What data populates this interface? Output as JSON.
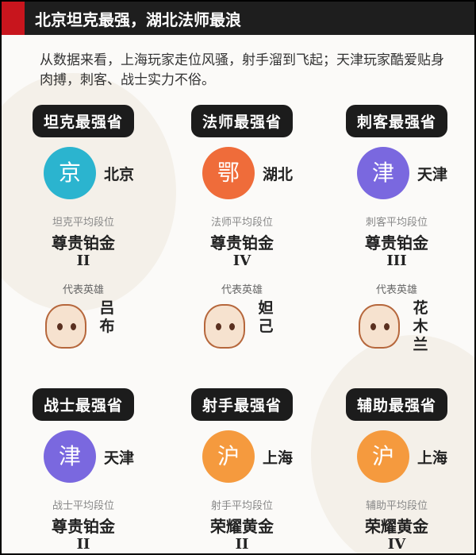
{
  "header": {
    "title": "北京坦克最强，湖北法师最浪"
  },
  "intro": "从数据来看，上海玩家走位风骚，射手溜到飞起；天津玩家酷爱贴身肉搏，刺客、战士实力不俗。",
  "colors": {
    "header_bg": "#1e1e1e",
    "accent_red": "#c8151d",
    "beijing": "#2bb4cf",
    "hubei": "#ef6c3a",
    "tianjin": "#7a68df",
    "shanghai": "#f59a3e"
  },
  "cards": [
    {
      "title": "坦克最强省",
      "badge": "京",
      "province": "北京",
      "rank_label": "坦克平均段位",
      "rank": "尊贵铂金",
      "tier": "II",
      "hero_label": "代表英雄",
      "hero": "吕布",
      "color": "#2bb4cf"
    },
    {
      "title": "法师最强省",
      "badge": "鄂",
      "province": "湖北",
      "rank_label": "法师平均段位",
      "rank": "尊贵铂金",
      "tier": "IV",
      "hero_label": "代表英雄",
      "hero": "妲己",
      "color": "#ef6c3a"
    },
    {
      "title": "刺客最强省",
      "badge": "津",
      "province": "天津",
      "rank_label": "刺客平均段位",
      "rank": "尊贵铂金",
      "tier": "III",
      "hero_label": "代表英雄",
      "hero": "花木兰",
      "color": "#7a68df"
    },
    {
      "title": "战士最强省",
      "badge": "津",
      "province": "天津",
      "rank_label": "战士平均段位",
      "rank": "尊贵铂金",
      "tier": "II",
      "color": "#7a68df"
    },
    {
      "title": "射手最强省",
      "badge": "沪",
      "province": "上海",
      "rank_label": "射手平均段位",
      "rank": "荣耀黄金",
      "tier": "II",
      "color": "#f59a3e"
    },
    {
      "title": "辅助最强省",
      "badge": "沪",
      "province": "上海",
      "rank_label": "辅助平均段位",
      "rank": "荣耀黄金",
      "tier": "IV",
      "color": "#f59a3e"
    }
  ]
}
